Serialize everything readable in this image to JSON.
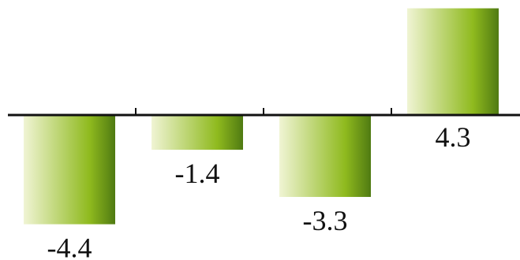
{
  "chart_data": {
    "type": "bar",
    "categories": [
      "",
      "",
      "",
      ""
    ],
    "values": [
      -4.4,
      -1.4,
      -3.3,
      4.3
    ],
    "data_labels": [
      "-4.4",
      "-1.4",
      "-3.3",
      "4.3"
    ],
    "title": "",
    "xlabel": "",
    "ylabel": "",
    "ylim": [
      -4.7,
      4.5
    ],
    "grid": false,
    "legend": "none",
    "colors": {
      "gradient_light": "#f0f4d4",
      "gradient_mid": "#8fba1e",
      "gradient_dark": "#4f7a12",
      "axis": "#111111"
    }
  }
}
